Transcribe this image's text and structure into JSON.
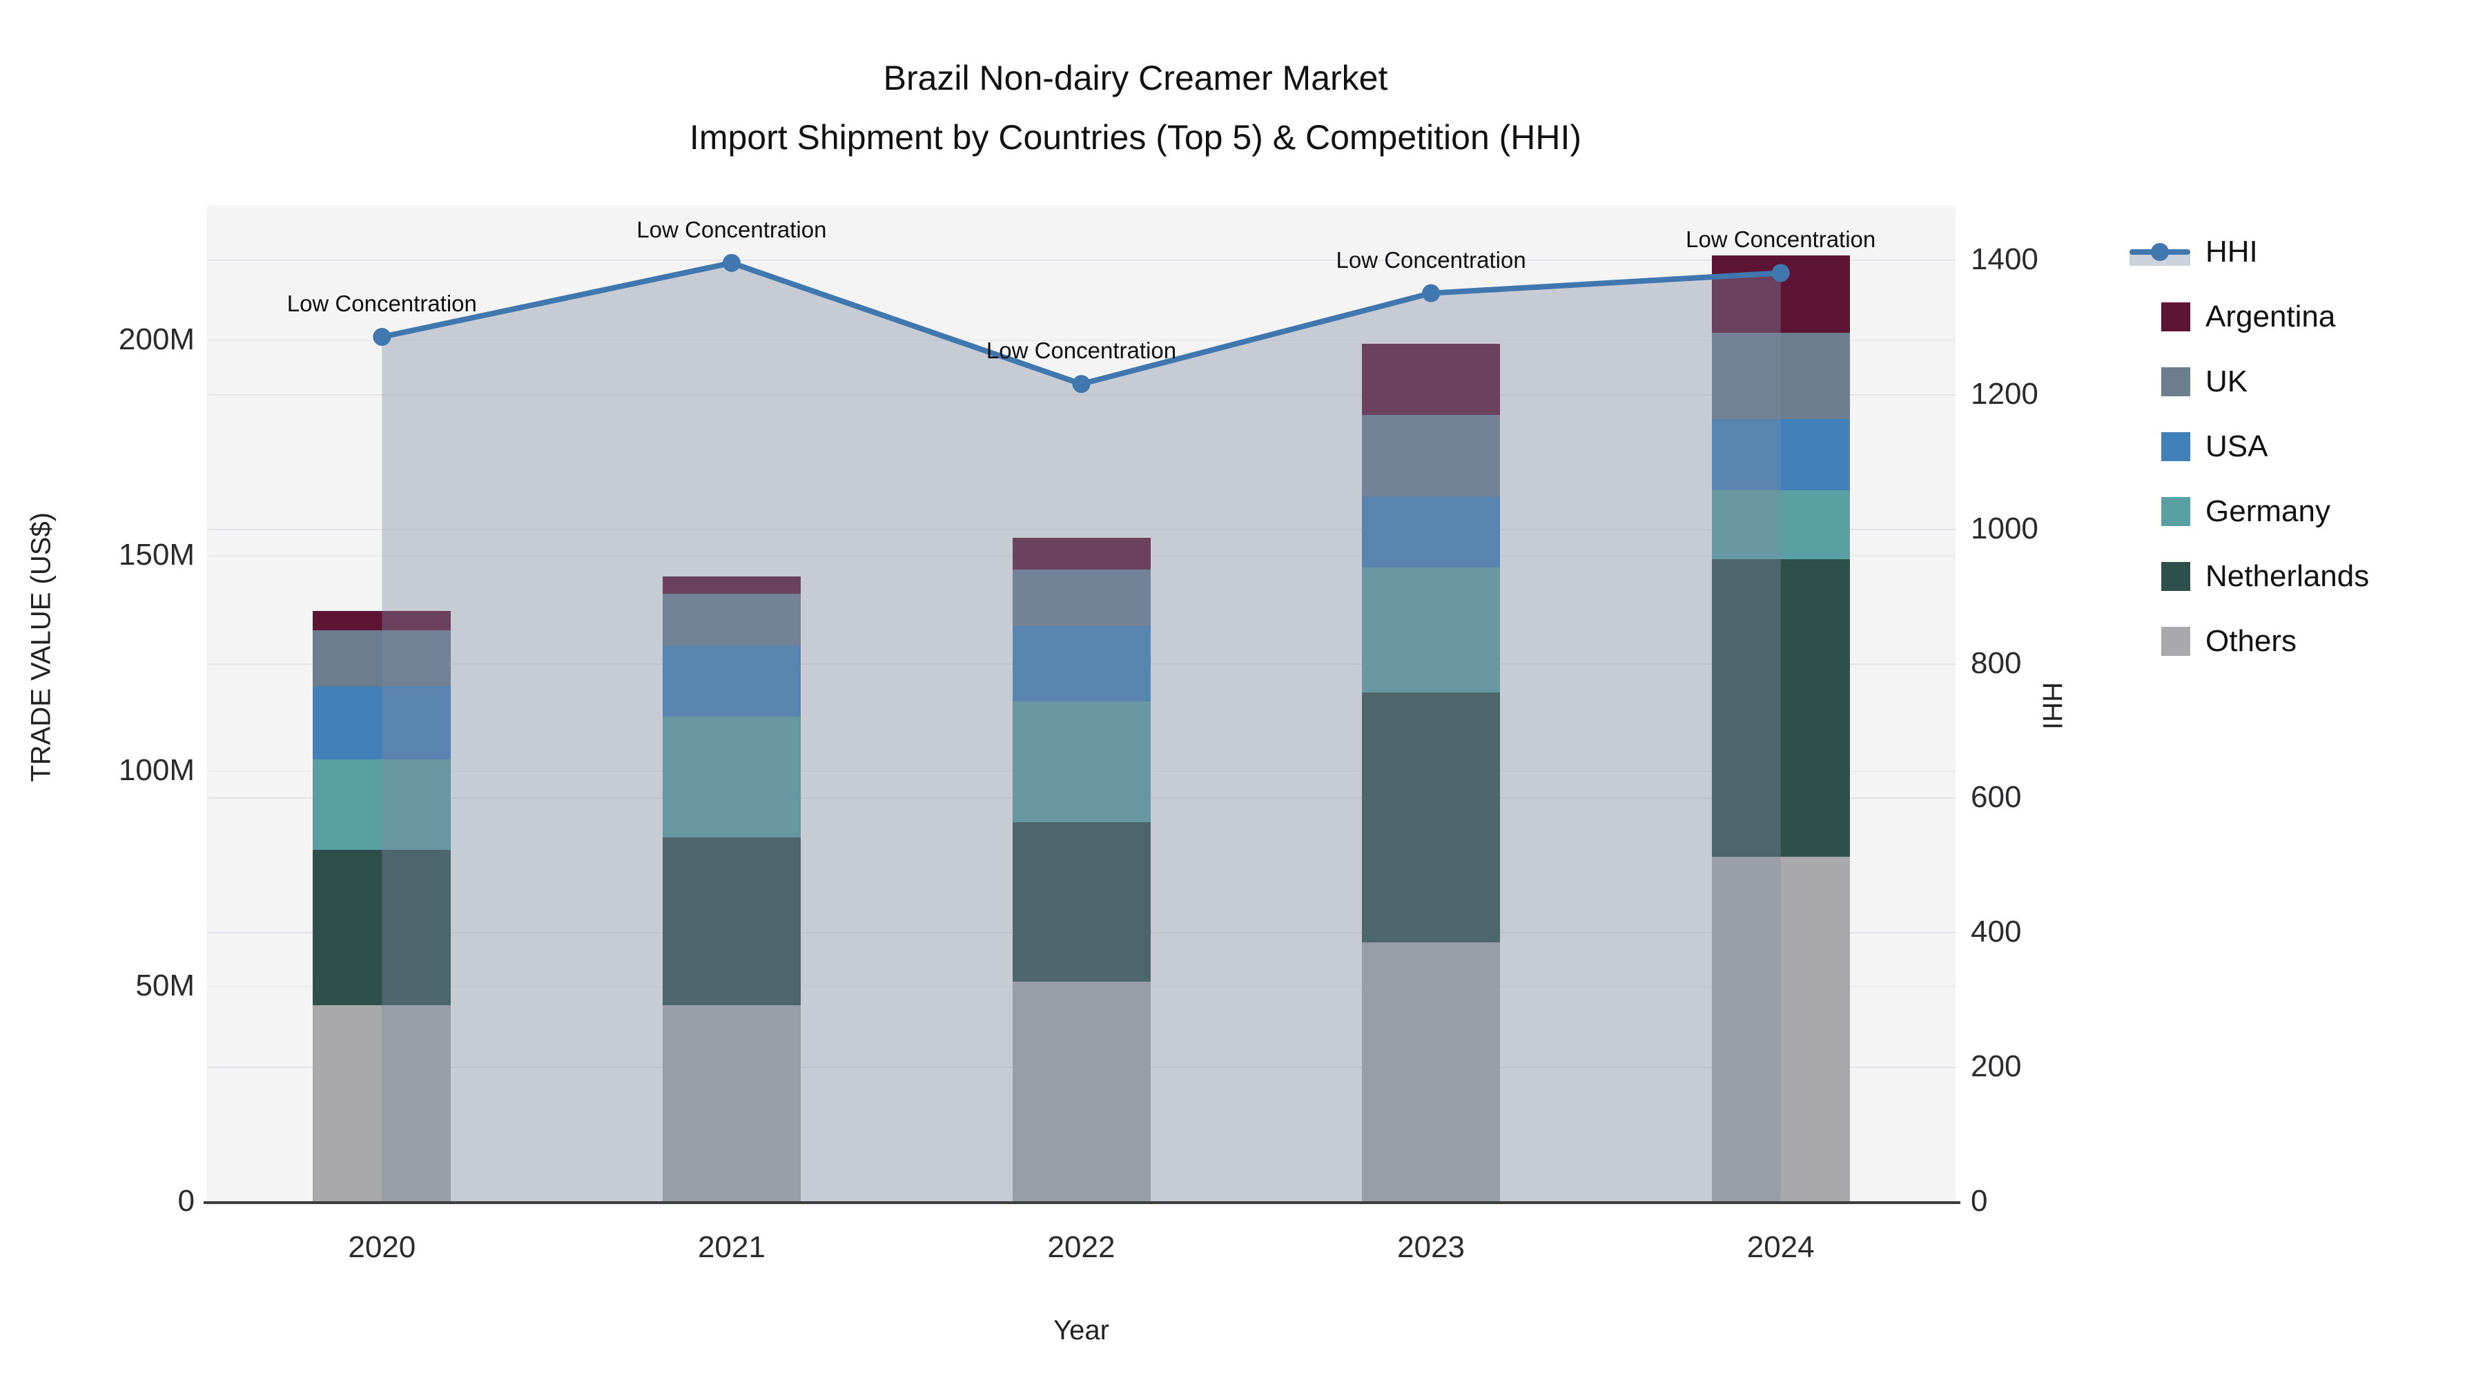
{
  "title": {
    "line1": "Brazil Non-dairy Creamer Market",
    "line2": "Import Shipment by Countries (Top 5) & Competition (HHI)"
  },
  "axes": {
    "left": {
      "title": "TRADE VALUE (US$)",
      "tick_labels": [
        "0",
        "50M",
        "100M",
        "150M",
        "200M"
      ],
      "tick_values": [
        0,
        50,
        100,
        150,
        200
      ]
    },
    "right": {
      "title": "HHI",
      "tick_labels": [
        "0",
        "200",
        "400",
        "600",
        "800",
        "1000",
        "1200",
        "1400"
      ],
      "tick_values": [
        0,
        200,
        400,
        600,
        800,
        1000,
        1200,
        1400
      ]
    },
    "x": {
      "title": "Year",
      "categories": [
        "2020",
        "2021",
        "2022",
        "2023",
        "2024"
      ]
    }
  },
  "legend": {
    "items": [
      {
        "label": "HHI",
        "type": "line",
        "color": "#4077ae"
      },
      {
        "label": "Argentina",
        "type": "square",
        "color": "#5e1535"
      },
      {
        "label": "UK",
        "type": "square",
        "color": "#6d7d90"
      },
      {
        "label": "USA",
        "type": "square",
        "color": "#4280ba"
      },
      {
        "label": "Germany",
        "type": "square",
        "color": "#5aa0a2"
      },
      {
        "label": "Netherlands",
        "type": "square",
        "color": "#2e4f4b"
      },
      {
        "label": "Others",
        "type": "square",
        "color": "#a9a9ab"
      }
    ]
  },
  "chart_data": {
    "type": [
      "bar",
      "line"
    ],
    "title": "Brazil Non-dairy Creamer Market — Import Shipment by Countries (Top 5) & Competition (HHI)",
    "categories": [
      "2020",
      "2021",
      "2022",
      "2023",
      "2024"
    ],
    "xlabel": "Year",
    "ylabel": "TRADE VALUE (US$)",
    "y2label": "HHI",
    "unit": "US$ millions (left axis), HHI index (right axis)",
    "stack_order_bottom_to_top": [
      "Others",
      "Netherlands",
      "Germany",
      "USA",
      "UK",
      "Argentina"
    ],
    "series": [
      {
        "name": "Others",
        "axis": "left",
        "color": "#a9a9ab",
        "values": [
          45.5,
          45.5,
          51.0,
          60.0,
          80.0
        ]
      },
      {
        "name": "Netherlands",
        "axis": "left",
        "color": "#2e4f4b",
        "values": [
          36.0,
          39.0,
          37.0,
          58.0,
          69.0
        ]
      },
      {
        "name": "Germany",
        "axis": "left",
        "color": "#5aa0a2",
        "values": [
          21.0,
          28.0,
          28.0,
          29.0,
          16.0
        ]
      },
      {
        "name": "USA",
        "axis": "left",
        "color": "#4280ba",
        "values": [
          17.0,
          16.5,
          17.5,
          16.5,
          16.5
        ]
      },
      {
        "name": "UK",
        "axis": "left",
        "color": "#6d7d90",
        "values": [
          13.0,
          12.0,
          13.0,
          19.0,
          20.0
        ]
      },
      {
        "name": "Argentina",
        "axis": "left",
        "color": "#5e1535",
        "values": [
          4.5,
          4.0,
          7.5,
          16.5,
          18.0
        ]
      }
    ],
    "bar_totals": [
      137.0,
      145.0,
      154.0,
      199.0,
      219.5
    ],
    "hhi": {
      "name": "HHI",
      "axis": "right",
      "type": "line+markers+area",
      "color": "#4077ae",
      "area_fill": "rgba(127,140,160,0.38)",
      "values": [
        1285,
        1395,
        1215,
        1350,
        1380
      ],
      "annotations": [
        "Low Concentration",
        "Low Concentration",
        "Low Concentration",
        "Low Concentration",
        "Low Concentration"
      ]
    },
    "ylim": [
      0,
      231
    ],
    "y2lim": [
      0,
      1480
    ],
    "grid": true,
    "legend_position": "right",
    "plot_bg": "#f4f4f4"
  }
}
